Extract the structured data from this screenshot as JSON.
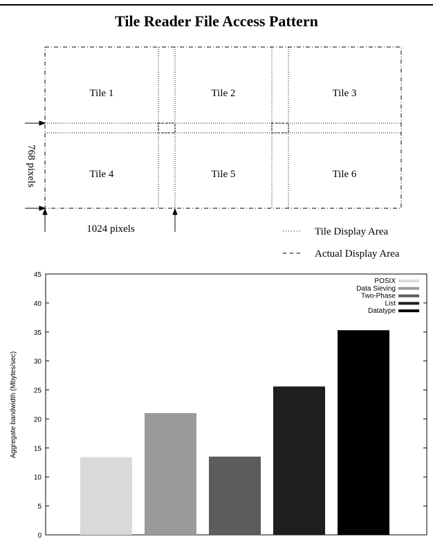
{
  "figure": {
    "title": "Tile Reader File Access Pattern"
  },
  "diagram": {
    "tiles": [
      "Tile 1",
      "Tile 2",
      "Tile 3",
      "Tile 4",
      "Tile 5",
      "Tile 6"
    ],
    "height_label": "768 pixels",
    "width_label": "1024 pixels",
    "legend": [
      {
        "style": "dotted",
        "label": "Tile Display Area"
      },
      {
        "style": "dashed",
        "label": "Actual Display Area"
      }
    ]
  },
  "chart_data": {
    "type": "bar",
    "title": "",
    "xlabel": "",
    "ylabel": "Aggregate bandwidth (Mbytes/sec)",
    "ylim": [
      0,
      45
    ],
    "yticks": [
      0,
      5,
      10,
      15,
      20,
      25,
      30,
      35,
      40,
      45
    ],
    "categories": [
      "POSIX",
      "Data Sieving",
      "Two-Phase",
      "List",
      "Datatype"
    ],
    "values": [
      13.4,
      21.0,
      13.5,
      25.6,
      35.3
    ],
    "colors": [
      "#d9d9d9",
      "#9a9a9a",
      "#5c5c5c",
      "#1e1e1e",
      "#000000"
    ],
    "legend": {
      "position": "top-right",
      "entries": [
        "POSIX",
        "Data Sieving",
        "Two-Phase",
        "List",
        "Datatype"
      ]
    },
    "grid": false
  }
}
